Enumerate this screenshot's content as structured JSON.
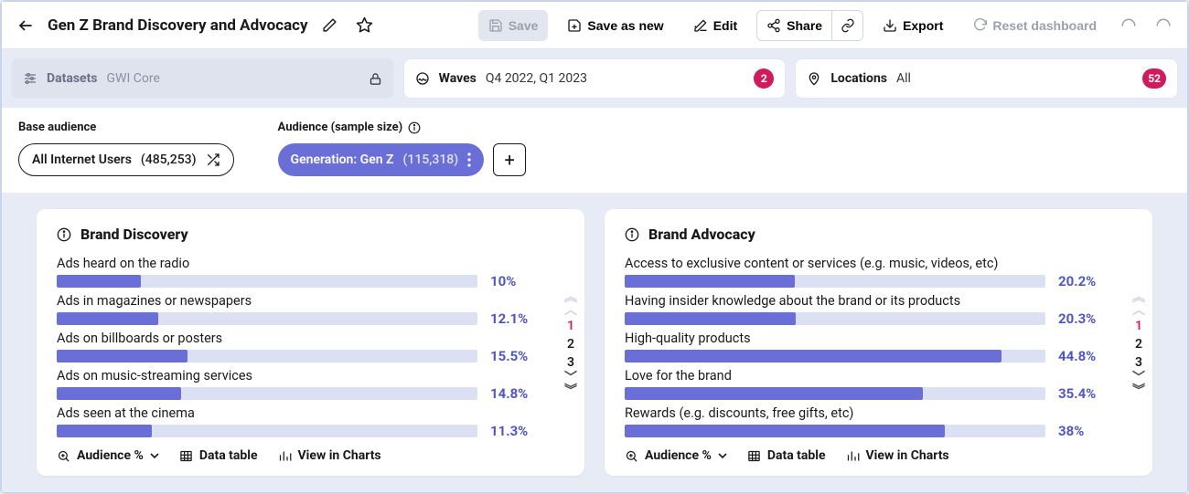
{
  "colors": {
    "accent_purple": "#6a6fd8",
    "accent_pink": "#d11a5b",
    "bar_track": "#dbe0f2",
    "page_bg": "#e6ebf5",
    "card_bg": "#ffffff",
    "text": "#1a1a1a",
    "muted": "#9aa1ae"
  },
  "toolbar": {
    "title": "Gen Z Brand Discovery and Advocacy",
    "save": "Save",
    "save_as_new": "Save as new",
    "edit": "Edit",
    "share": "Share",
    "export": "Export",
    "reset": "Reset dashboard"
  },
  "filters": {
    "datasets": {
      "label": "Datasets",
      "value": "GWI Core"
    },
    "waves": {
      "label": "Waves",
      "value": "Q4 2022, Q1 2023",
      "count": "2"
    },
    "locations": {
      "label": "Locations",
      "value": "All",
      "count": "52"
    }
  },
  "audience": {
    "base_label": "Base audience",
    "base_name": "All Internet Users",
    "base_count": "(485,253)",
    "aud_label": "Audience (sample size)",
    "aud_name": "Generation: Gen Z",
    "aud_count": "(115,318)"
  },
  "pager": {
    "pages": [
      "1",
      "2",
      "3"
    ],
    "active": "1"
  },
  "cards": {
    "discovery": {
      "title": "Brand Discovery",
      "max_pct": 50,
      "rows": [
        {
          "label": "Ads heard on the radio",
          "value": 10.0,
          "display": "10%"
        },
        {
          "label": "Ads in magazines or newspapers",
          "value": 12.1,
          "display": "12.1%"
        },
        {
          "label": "Ads on billboards or posters",
          "value": 15.5,
          "display": "15.5%"
        },
        {
          "label": "Ads on music-streaming services",
          "value": 14.8,
          "display": "14.8%"
        },
        {
          "label": "Ads seen at the cinema",
          "value": 11.3,
          "display": "11.3%"
        }
      ],
      "footer": {
        "metric": "Audience %",
        "table": "Data table",
        "charts": "View in Charts"
      }
    },
    "advocacy": {
      "title": "Brand Advocacy",
      "max_pct": 50,
      "rows": [
        {
          "label": "Access to exclusive content or services (e.g. music, videos, etc)",
          "value": 20.2,
          "display": "20.2%"
        },
        {
          "label": "Having insider knowledge about the brand or its products",
          "value": 20.3,
          "display": "20.3%"
        },
        {
          "label": "High-quality products",
          "value": 44.8,
          "display": "44.8%"
        },
        {
          "label": "Love for the brand",
          "value": 35.4,
          "display": "35.4%"
        },
        {
          "label": "Rewards (e.g. discounts, free gifts, etc)",
          "value": 38.0,
          "display": "38%"
        }
      ],
      "footer": {
        "metric": "Audience %",
        "table": "Data table",
        "charts": "View in Charts"
      }
    }
  }
}
